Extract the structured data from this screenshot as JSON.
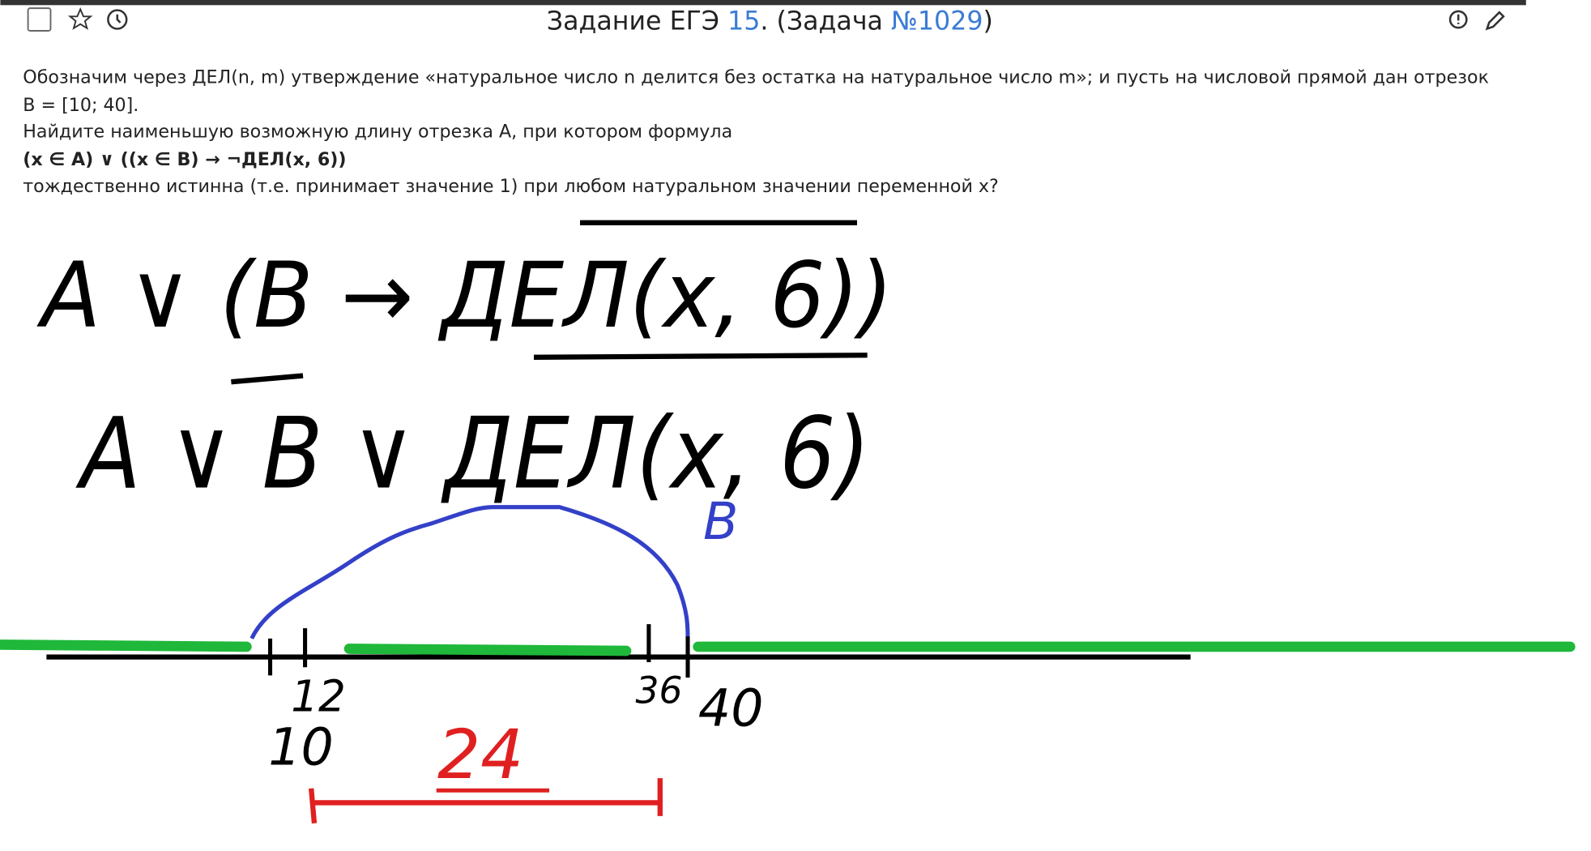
{
  "header": {
    "title_prefix": "Задание ЕГЭ ",
    "task_number": "15",
    "title_middle": ". (Задача ",
    "problem_id": "№1029",
    "title_suffix": ")"
  },
  "problem": {
    "lines": [
      "Обозначим через ДЕЛ(n, m) утверждение «натуральное число n делится без остатка на натуральное число m»; и пусть на числовой прямой дан отрезок",
      "B = [10; 40].",
      "Найдите наименьшую возможную длину отрезка A, при котором формула"
    ],
    "formula": "(x ∈ A) ∨ ((x ∈ B) → ¬ДЕЛ(x, 6))",
    "last_line": "тождественно истинна (т.е. принимает значение 1) при любом натуральном значении переменной x?"
  },
  "handwriting": {
    "line1": "A ∨ (B → ДЕЛ(x, 6))",
    "line2": "A ∨ B ∨ ДЕЛ(x, 6)",
    "labels": {
      "segment": "B",
      "p10": "10",
      "p12": "12",
      "p36": "36",
      "p40": "40",
      "answer": "24"
    }
  }
}
